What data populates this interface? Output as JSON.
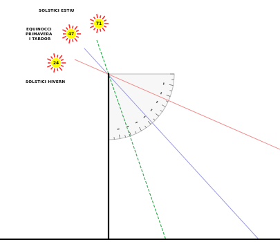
{
  "suns": [
    {
      "id": "summer",
      "label_lines": [
        "SOLSTICI ESTIU"
      ],
      "value": "71",
      "ray_color": "#2aa84a",
      "ray_style": "dashed"
    },
    {
      "id": "equinox",
      "label_lines": [
        "EQUINOCCI",
        "PRIMAVERA",
        "I TARDOR"
      ],
      "value": "47",
      "ray_color": "#9a9ae0",
      "ray_style": "solid"
    },
    {
      "id": "winter",
      "label_lines": [
        "SOLSTICI HIVERN"
      ],
      "value": "24",
      "ray_color": "#f08c8c",
      "ray_style": "solid"
    }
  ],
  "colors": {
    "sun_core": "#ffff00",
    "sun_rays": "#ff2a2a",
    "gnomon": "#000000",
    "ground": "#000000",
    "protractor": "#555555"
  },
  "icons": [
    "sun-icon",
    "protractor-icon",
    "gnomon-pole"
  ]
}
